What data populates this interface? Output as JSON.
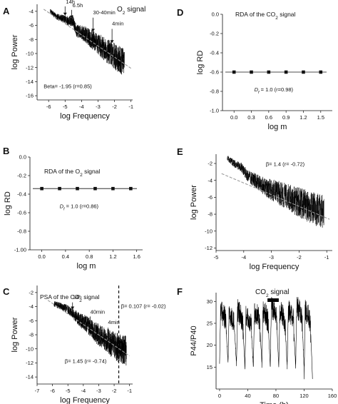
{
  "panel_letters": {
    "A": "A",
    "B": "B",
    "C": "C",
    "D": "D",
    "E": "E",
    "F": "F"
  },
  "chart_data": [
    {
      "panel": "A",
      "type": "line",
      "title": "O",
      "title_sub": "2",
      "title_tail": " signal",
      "xlabel": "log Frequency",
      "ylabel": "log Power",
      "xlim": [
        -6.7,
        -0.9
      ],
      "ylim": [
        -16.6,
        -3.0
      ],
      "xticks": [
        -6,
        -5,
        -4,
        -3,
        -2,
        -1
      ],
      "xtick_labels": [
        "-6",
        "-5",
        "-4",
        "-3",
        "-2",
        "-1"
      ],
      "yticks": [
        -4,
        -6,
        -8,
        -10,
        -12,
        -14,
        -16
      ],
      "ytick_labels": [
        "-4",
        "-6",
        "-8",
        "-10",
        "-12",
        "-14",
        "-16"
      ],
      "series": [
        {
          "style": "noisy",
          "x": [
            -5.9,
            -5.5,
            -5.1,
            -4.8,
            -4.55,
            -4.3,
            -4.0,
            -3.7,
            -3.4,
            -3.1,
            -2.8,
            -2.5,
            -2.2,
            -1.9,
            -1.6,
            -1.4
          ],
          "y": [
            -4.0,
            -4.8,
            -5.0,
            -5.4,
            -5.3,
            -6.8,
            -7.0,
            -7.4,
            -8.0,
            -8.4,
            -9.0,
            -9.6,
            -10.0,
            -10.6,
            -11.0,
            -11.3
          ],
          "noise": [
            0.35,
            0.45,
            0.5,
            0.7,
            0.8,
            0.9,
            1.0,
            1.2,
            1.35,
            1.45,
            1.6,
            1.7,
            1.8,
            1.9,
            2.0,
            2.05
          ]
        },
        {
          "style": "fit",
          "x": [
            -6.3,
            -1.0
          ],
          "y": [
            -3.7,
            -12.1
          ]
        }
      ],
      "annotations": [
        {
          "text": "14h",
          "x": -4.95,
          "y": -2.9
        },
        {
          "text": "6.5h",
          "x": -4.55,
          "y": -3.4
        },
        {
          "text": "30-40min",
          "x": -3.3,
          "y": -4.4
        },
        {
          "text": "4min",
          "x": -2.15,
          "y": -6.0
        },
        {
          "text": "Beta= -1.95 (r=0.85)",
          "x": -6.3,
          "y": -14.9
        }
      ],
      "arrows": [
        {
          "x": -5.0,
          "y1": -3.3,
          "y2": -4.6
        },
        {
          "x": -4.6,
          "y1": -3.8,
          "y2": -5.0
        },
        {
          "x": -3.3,
          "y1": -4.9,
          "y2": -6.9
        },
        {
          "x": -2.15,
          "y1": -6.5,
          "y2": -8.5
        }
      ]
    },
    {
      "panel": "B",
      "type": "line",
      "title": "RDA of the O",
      "title_sub": "2",
      "title_tail": " signal",
      "xlabel": "log m",
      "ylabel": "log RD",
      "xlim": [
        -0.2,
        1.7
      ],
      "ylim": [
        -1.0,
        0.0
      ],
      "xticks": [
        0.0,
        0.4,
        0.8,
        1.2,
        1.6
      ],
      "xtick_labels": [
        "0.0",
        "0.4",
        "0.8",
        "1.2",
        "1.6"
      ],
      "yticks": [
        0.0,
        -0.2,
        -0.4,
        -0.6,
        -0.8,
        -1.0
      ],
      "ytick_labels": [
        "0.0",
        "-0.2",
        "-0.4",
        "-0.6",
        "-0.8",
        "-1.00"
      ],
      "series": [
        {
          "style": "line-markers",
          "x": [
            0.0,
            0.3,
            0.6,
            0.9,
            1.2,
            1.5
          ],
          "y": [
            -0.34,
            -0.34,
            -0.34,
            -0.34,
            -0.34,
            -0.34
          ]
        }
      ],
      "annotations": [
        {
          "text": "D",
          "sub": "f",
          "tail": " = 1.0 (r=0.86)",
          "x": 0.3,
          "y": -0.55
        }
      ]
    },
    {
      "panel": "C",
      "type": "line",
      "title": "PSA of the CO",
      "title_sub": "2",
      "title_tail": " signal",
      "xlabel": "log Frequency",
      "ylabel": "log Power",
      "xlim": [
        -7.0,
        -0.8
      ],
      "ylim": [
        -15.0,
        -1.0
      ],
      "xticks": [
        -7,
        -6,
        -5,
        -4,
        -3,
        -2,
        -1
      ],
      "xtick_labels": [
        "-7",
        "-6",
        "-5",
        "-4",
        "-3",
        "-2",
        "-1"
      ],
      "yticks": [
        -2,
        -4,
        -6,
        -8,
        -10,
        -12,
        -14
      ],
      "ytick_labels": [
        "-2",
        "-4",
        "-6",
        "-8",
        "-10",
        "-12",
        "-14"
      ],
      "vline": -1.7,
      "series": [
        {
          "style": "noisy",
          "x": [
            -5.9,
            -5.5,
            -5.1,
            -4.8,
            -4.5,
            -4.2,
            -3.9,
            -3.6,
            -3.3,
            -3.0,
            -2.7,
            -2.4,
            -2.1,
            -1.8,
            -1.5,
            -1.2
          ],
          "y": [
            -3.6,
            -3.9,
            -4.3,
            -4.8,
            -5.3,
            -6.0,
            -6.3,
            -6.9,
            -7.5,
            -8.0,
            -8.5,
            -9.0,
            -9.4,
            -9.8,
            -10.0,
            -10.3
          ],
          "noise": [
            0.4,
            0.5,
            0.6,
            0.7,
            0.85,
            1.0,
            1.15,
            1.3,
            1.45,
            1.6,
            1.7,
            1.85,
            1.95,
            2.05,
            2.1,
            2.15
          ]
        },
        {
          "style": "fit",
          "x": [
            -6.3,
            -1.0
          ],
          "y": [
            -3.1,
            -11.0
          ]
        }
      ],
      "annotations": [
        {
          "text": "14h",
          "x": -4.7,
          "y": -2.9
        },
        {
          "text": "40min",
          "x": -3.55,
          "y": -5.0
        },
        {
          "text": "4min",
          "x": -2.4,
          "y": -6.5
        },
        {
          "text": "β= 0.107 (r= -0.02)",
          "x": -1.55,
          "y": -4.2
        },
        {
          "text": "β= 1.45 (r= -0.74)",
          "x": -5.2,
          "y": -12.0
        }
      ],
      "arrows": [
        {
          "x": -4.7,
          "y1": -3.4,
          "y2": -4.4
        },
        {
          "x": -3.55,
          "y1": -5.4,
          "y2": -6.9
        },
        {
          "x": -2.4,
          "y1": -7.0,
          "y2": -8.6
        }
      ]
    },
    {
      "panel": "D",
      "type": "line",
      "title": "RDA of the CO",
      "title_sub": "2",
      "title_tail": " signal",
      "xlabel": "log m",
      "ylabel": "log RD",
      "xlim": [
        -0.2,
        1.7
      ],
      "ylim": [
        -1.0,
        0.0
      ],
      "xticks": [
        0.0,
        0.3,
        0.6,
        0.9,
        1.2,
        1.5
      ],
      "xtick_labels": [
        "0.0",
        "0.3",
        "0.6",
        "0.9",
        "1.2",
        "1.5"
      ],
      "yticks": [
        0.0,
        -0.2,
        -0.4,
        -0.6,
        -0.8,
        -1.0
      ],
      "ytick_labels": [
        "0.0",
        "-0.2",
        "-0.4",
        "-0.6",
        "-0.8",
        "-1.0"
      ],
      "series": [
        {
          "style": "line-markers",
          "x": [
            0.0,
            0.3,
            0.6,
            0.9,
            1.2,
            1.5
          ],
          "y": [
            -0.6,
            -0.6,
            -0.6,
            -0.6,
            -0.6,
            -0.6
          ]
        }
      ],
      "annotations": [
        {
          "text": "D",
          "sub": "f",
          "tail": " = 1.0 (r=0.98)",
          "x": 0.35,
          "y": -0.8
        }
      ]
    },
    {
      "panel": "E",
      "type": "line",
      "title": "",
      "xlabel": "log Frequency",
      "ylabel": "log Power",
      "xlim": [
        -5.0,
        -0.8
      ],
      "ylim": [
        -12.3,
        -0.9
      ],
      "xticks": [
        -5,
        -4,
        -3,
        -2,
        -1
      ],
      "xtick_labels": [
        "-5",
        "-4",
        "-3",
        "-2",
        "-1"
      ],
      "yticks": [
        -2,
        -4,
        -6,
        -8,
        -10,
        -12
      ],
      "ytick_labels": [
        "-2",
        "-4",
        "-6",
        "-8",
        "-10",
        "-12"
      ],
      "series": [
        {
          "style": "noisy",
          "x": [
            -4.6,
            -4.35,
            -4.1,
            -3.85,
            -3.6,
            -3.35,
            -3.1,
            -2.85,
            -2.6,
            -2.35,
            -2.1,
            -1.85,
            -1.6,
            -1.35,
            -1.1
          ],
          "y": [
            -1.3,
            -2.0,
            -2.4,
            -3.5,
            -4.0,
            -4.5,
            -5.0,
            -5.3,
            -5.7,
            -6.0,
            -6.5,
            -6.8,
            -7.2,
            -7.5,
            -7.8
          ],
          "noise": [
            0.35,
            0.45,
            0.55,
            0.7,
            0.9,
            1.0,
            1.2,
            1.35,
            1.5,
            1.6,
            1.75,
            1.85,
            1.95,
            2.0,
            2.05
          ]
        },
        {
          "style": "fit",
          "x": [
            -4.8,
            -0.9
          ],
          "y": [
            -3.2,
            -8.6
          ]
        }
      ],
      "annotations": [
        {
          "text": "β= 1.4 (r= -0.72)",
          "x": -3.2,
          "y": -2.3
        }
      ]
    },
    {
      "panel": "F",
      "type": "line",
      "title": "CO",
      "title_sub": "2",
      "title_tail": " signal",
      "xlabel": "Time (h)",
      "ylabel": "P44/P40",
      "xlim": [
        -5,
        160
      ],
      "ylim": [
        10,
        32
      ],
      "xticks": [
        0,
        40,
        80,
        120,
        160
      ],
      "xtick_labels": [
        "0",
        "40",
        "80",
        "120",
        "160"
      ],
      "yticks": [
        15,
        20,
        25,
        30
      ],
      "ytick_labels": [
        "15",
        "20",
        "25",
        "30"
      ],
      "bar": [
        68,
        84
      ],
      "series": [
        {
          "style": "oscillation",
          "cycle_starts": [
            0,
            12,
            24,
            36,
            48,
            60,
            72,
            84,
            96,
            108,
            120
          ],
          "highs": [
            28,
            27,
            28,
            27,
            28,
            28,
            29,
            28,
            28,
            29,
            28
          ],
          "lows": [
            16,
            16,
            15,
            15,
            16,
            15,
            15,
            15,
            15,
            15,
            12
          ],
          "end": 132
        }
      ]
    }
  ]
}
